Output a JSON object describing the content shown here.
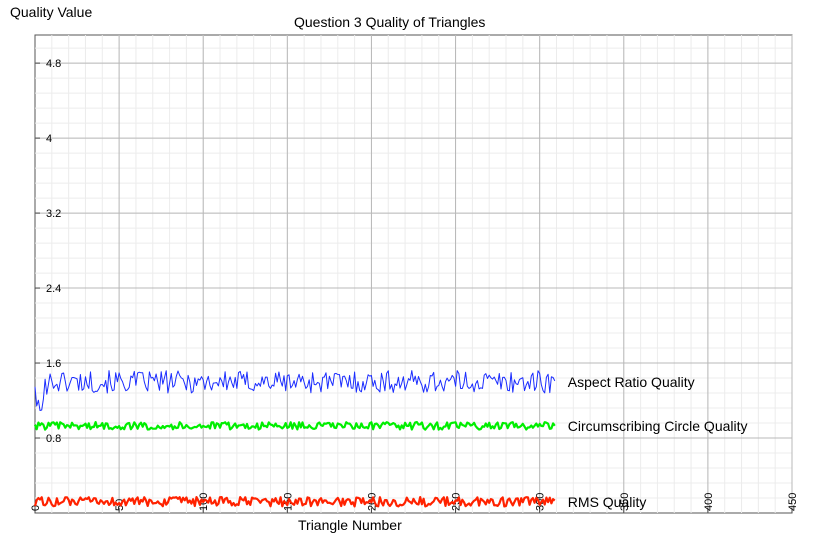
{
  "chart_data": {
    "type": "line",
    "title": "Question 3 Quality of Triangles",
    "xlabel": "Triangle Number",
    "ylabel": "Quality Value",
    "xlim": [
      0,
      450
    ],
    "ylim": [
      0,
      5.1
    ],
    "xticks": [
      "0",
      "50",
      "100",
      "150",
      "200",
      "250",
      "300",
      "350",
      "400",
      "450"
    ],
    "yticks": [
      "0.8",
      "1.6",
      "2.4",
      "3.2",
      "4",
      "4.8"
    ],
    "grid": true,
    "legend": "labels at right end of each series",
    "n_points": 310,
    "series": [
      {
        "name": "Aspect Ratio Quality",
        "color": "#1a2cff",
        "mean": 1.4,
        "amplitude": 0.12
      },
      {
        "name": "Circumscribing Circle Quality",
        "color": "#00ee00",
        "mean": 0.93,
        "amplitude": 0.04
      },
      {
        "name": "RMS Quality",
        "color": "#ff2200",
        "mean": 0.12,
        "amplitude": 0.05
      }
    ]
  }
}
